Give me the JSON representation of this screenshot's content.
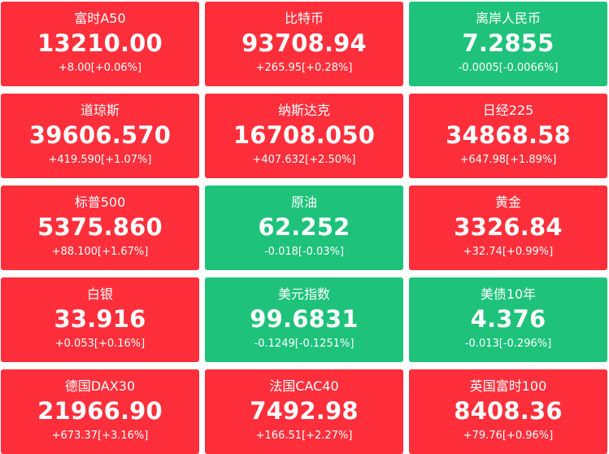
{
  "colors": {
    "up": "#fe2f3b",
    "down": "#1ec27a",
    "text": "#ffffff"
  },
  "tickers": [
    {
      "name": "富时A50",
      "price": "13210.00",
      "change": "+8.00[+0.06%]",
      "direction": "up"
    },
    {
      "name": "比特币",
      "price": "93708.94",
      "change": "+265.95[+0.28%]",
      "direction": "up"
    },
    {
      "name": "离岸人民币",
      "price": "7.2855",
      "change": "-0.0005[-0.0066%]",
      "direction": "down"
    },
    {
      "name": "道琼斯",
      "price": "39606.570",
      "change": "+419.590[+1.07%]",
      "direction": "up"
    },
    {
      "name": "纳斯达克",
      "price": "16708.050",
      "change": "+407.632[+2.50%]",
      "direction": "up"
    },
    {
      "name": "日经225",
      "price": "34868.58",
      "change": "+647.98[+1.89%]",
      "direction": "up"
    },
    {
      "name": "标普500",
      "price": "5375.860",
      "change": "+88.100[+1.67%]",
      "direction": "up"
    },
    {
      "name": "原油",
      "price": "62.252",
      "change": "-0.018[-0.03%]",
      "direction": "down"
    },
    {
      "name": "黄金",
      "price": "3326.84",
      "change": "+32.74[+0.99%]",
      "direction": "up"
    },
    {
      "name": "白银",
      "price": "33.916",
      "change": "+0.053[+0.16%]",
      "direction": "up"
    },
    {
      "name": "美元指数",
      "price": "99.6831",
      "change": "-0.1249[-0.1251%]",
      "direction": "down"
    },
    {
      "name": "美债10年",
      "price": "4.376",
      "change": "-0.013[-0.296%]",
      "direction": "down"
    },
    {
      "name": "德国DAX30",
      "price": "21966.90",
      "change": "+673.37[+3.16%]",
      "direction": "up"
    },
    {
      "name": "法国CAC40",
      "price": "7492.98",
      "change": "+166.51[+2.27%]",
      "direction": "up"
    },
    {
      "name": "英国富时100",
      "price": "8408.36",
      "change": "+79.76[+0.96%]",
      "direction": "up"
    }
  ]
}
